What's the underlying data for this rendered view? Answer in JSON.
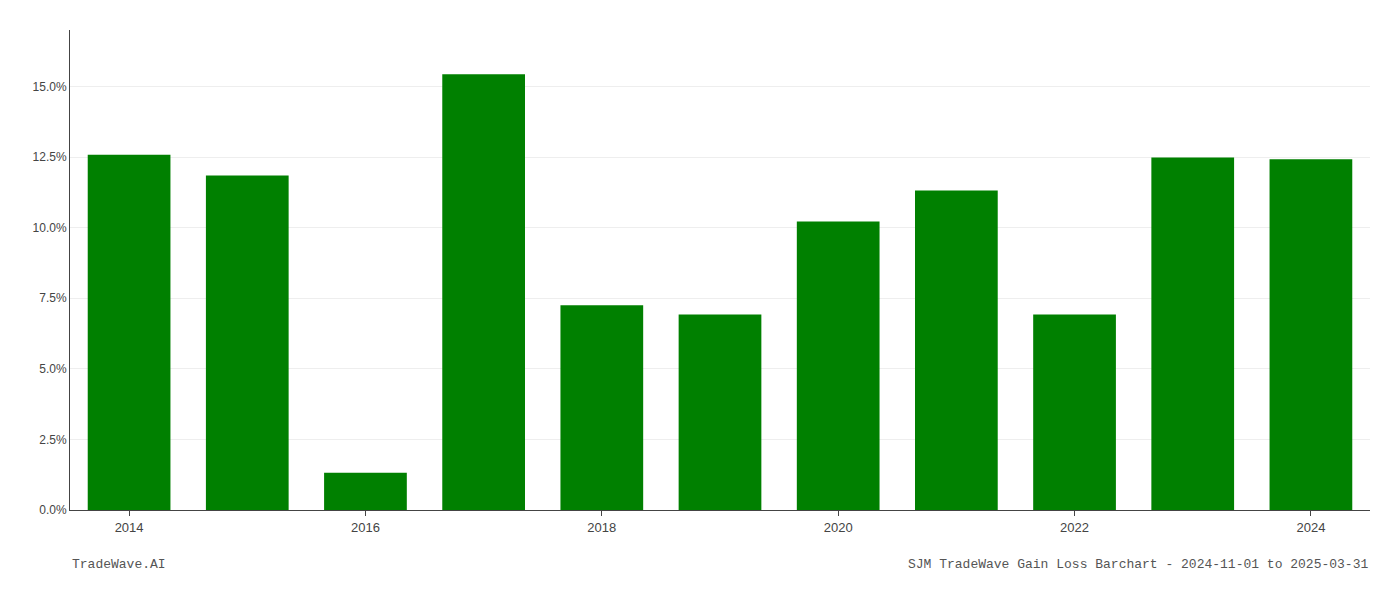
{
  "chart_data": {
    "type": "bar",
    "categories": [
      "2014",
      null,
      "2016",
      null,
      "2018",
      null,
      "2020",
      null,
      "2022",
      null,
      "2024"
    ],
    "values": [
      0.1258,
      0.1185,
      0.0132,
      0.1543,
      0.0725,
      0.0692,
      0.1022,
      0.1132,
      0.0692,
      0.1248,
      0.1242
    ],
    "color": "#008000",
    "ylim": [
      0,
      0.17
    ],
    "yticks": [
      {
        "value": 0.0,
        "label": "0.0%"
      },
      {
        "value": 0.025,
        "label": "2.5%"
      },
      {
        "value": 0.05,
        "label": "5.0%"
      },
      {
        "value": 0.075,
        "label": "7.5%"
      },
      {
        "value": 0.1,
        "label": "10.0%"
      },
      {
        "value": 0.125,
        "label": "12.5%"
      },
      {
        "value": 0.15,
        "label": "15.0%"
      }
    ],
    "grid": true,
    "annotations": [
      "TradeWave.AI",
      "SJM TradeWave Gain Loss Barchart - 2024-11-01 to 2025-03-31"
    ]
  }
}
